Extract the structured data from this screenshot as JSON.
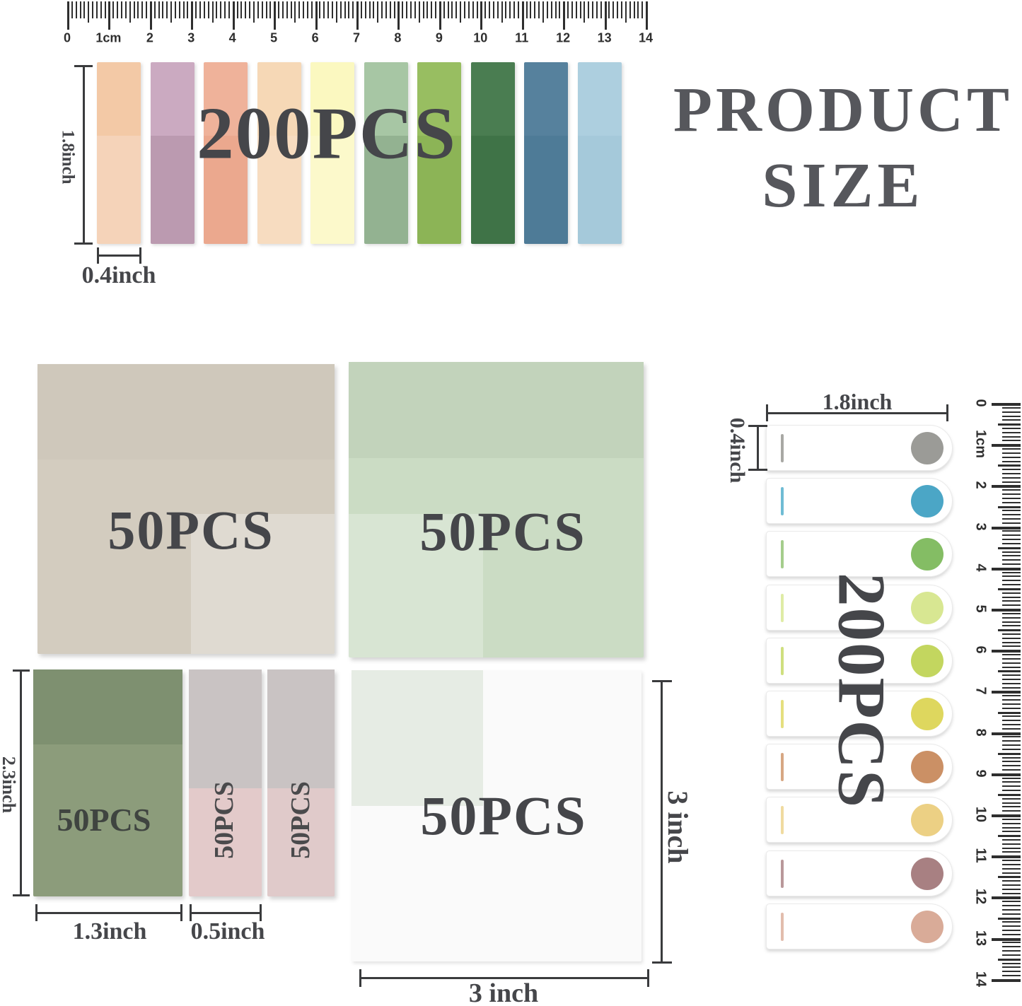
{
  "title": {
    "line1": "PRODUCT",
    "line2": "SIZE"
  },
  "top_section": {
    "count_label": "200PCS",
    "height_label": "1.8inch",
    "width_label": "0.4inch",
    "tabs": [
      {
        "top": "#f3c9a6",
        "bottom": "#f5d3b9"
      },
      {
        "top": "#cbaac1",
        "bottom": "#bb9ab0"
      },
      {
        "top": "#efb29a",
        "bottom": "#eba88e"
      },
      {
        "top": "#f6d8b6",
        "bottom": "#f7dcc0"
      },
      {
        "top": "#fbf8c0",
        "bottom": "#fcf9cb"
      },
      {
        "top": "#a7c6a4",
        "bottom": "#93b291"
      },
      {
        "top": "#98be61",
        "bottom": "#8cb456"
      },
      {
        "top": "#4a7d51",
        "bottom": "#3f7347"
      },
      {
        "top": "#56819d",
        "bottom": "#4e7b97"
      },
      {
        "top": "#adcfdf",
        "bottom": "#a5c9da"
      }
    ]
  },
  "rulers": {
    "horizontal": {
      "labels": [
        "0",
        "1cm",
        "2",
        "3",
        "4",
        "5",
        "6",
        "7",
        "8",
        "9",
        "10",
        "11",
        "12",
        "13",
        "14"
      ]
    },
    "vertical": {
      "labels": [
        "0",
        "1cm",
        "2",
        "3",
        "4",
        "5",
        "6",
        "7",
        "8",
        "9",
        "10",
        "11",
        "12",
        "13",
        "14"
      ]
    }
  },
  "pads": {
    "beige": {
      "count_label": "50PCS"
    },
    "green": {
      "count_label": "50PCS"
    },
    "small_green": {
      "count_label": "50PCS",
      "height_label": "2.3inch",
      "width_label": "1.3inch"
    },
    "strip_1": {
      "count_label": "50PCS"
    },
    "strip_2": {
      "count_label": "50PCS"
    },
    "strips_width_label": "0.5inch",
    "white": {
      "count_label": "50PCS",
      "height_label": "3 inch",
      "width_label": "3 inch"
    }
  },
  "right_section": {
    "count_label": "200PCS",
    "width_label": "1.8inch",
    "height_label": "0.4inch",
    "tabs": [
      {
        "line": "#a8a8a4",
        "dot": "#9b9b97"
      },
      {
        "line": "#6fbcd4",
        "dot": "#4ba6c6"
      },
      {
        "line": "#a5cd8c",
        "dot": "#84bd64"
      },
      {
        "line": "#dfeca6",
        "dot": "#d8e792"
      },
      {
        "line": "#cfdf7f",
        "dot": "#c3d65f"
      },
      {
        "line": "#e5df7f",
        "dot": "#ded75e"
      },
      {
        "line": "#d7a783",
        "dot": "#cb9065"
      },
      {
        "line": "#f0dba0",
        "dot": "#ecd084"
      },
      {
        "line": "#b9989a",
        "dot": "#a88082"
      },
      {
        "line": "#e2bdad",
        "dot": "#d9ab98"
      }
    ]
  },
  "colors": {
    "text": "#45464a",
    "dimension_line": "#3a3b3d",
    "tick": "#2e2e2e"
  }
}
